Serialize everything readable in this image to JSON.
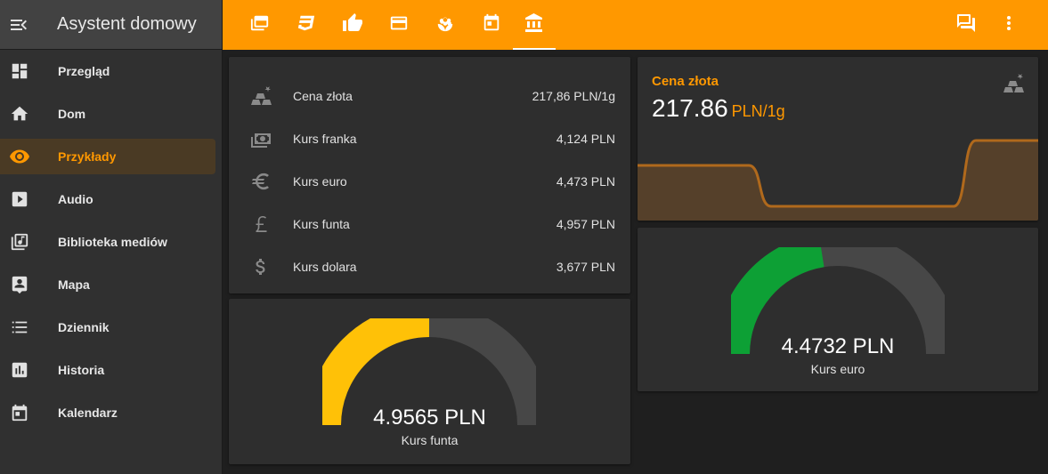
{
  "app": {
    "title": "Asystent domowy"
  },
  "sidebar": {
    "items": [
      {
        "label": "Przegląd",
        "icon": "dashboard-icon"
      },
      {
        "label": "Dom",
        "icon": "home-icon"
      },
      {
        "label": "Przykłady",
        "icon": "eye-icon",
        "active": true
      },
      {
        "label": "Audio",
        "icon": "play-box-icon"
      },
      {
        "label": "Biblioteka mediów",
        "icon": "music-library-icon"
      },
      {
        "label": "Mapa",
        "icon": "account-box-icon"
      },
      {
        "label": "Dziennik",
        "icon": "list-icon"
      },
      {
        "label": "Historia",
        "icon": "chart-box-icon"
      },
      {
        "label": "Kalendarz",
        "icon": "calendar-icon"
      }
    ]
  },
  "topbar": {
    "tabs": [
      "cards-icon",
      "css3-icon",
      "thumb-up-icon",
      "credit-card-icon",
      "flower-icon",
      "calendar-today-icon",
      "bank-icon"
    ],
    "active_tab": 6,
    "right": [
      "conversation-icon",
      "more-vertical-icon"
    ]
  },
  "entities": {
    "rows": [
      {
        "name": "Cena złota",
        "value": "217,86 PLN/1g",
        "icon": "gold-icon"
      },
      {
        "name": "Kurs franka",
        "value": "4,124 PLN",
        "icon": "cash-icon"
      },
      {
        "name": "Kurs euro",
        "value": "4,473 PLN",
        "icon": "euro-icon"
      },
      {
        "name": "Kurs funta",
        "value": "4,957 PLN",
        "icon": "pound-icon"
      },
      {
        "name": "Kurs dolara",
        "value": "3,677 PLN",
        "icon": "dollar-icon"
      }
    ]
  },
  "sensor": {
    "name": "Cena złota",
    "value": "217.86",
    "unit": "PLN/1g",
    "icon": "gold-icon"
  },
  "gauges": {
    "funt": {
      "value_text": "4.9565 PLN",
      "label": "Kurs funta",
      "fraction": 0.5,
      "color": "#ffc107"
    },
    "euro": {
      "value_text": "4.4732 PLN",
      "label": "Kurs euro",
      "fraction": 0.45,
      "color": "#0da035"
    }
  },
  "colors": {
    "accent": "#ff9800",
    "gauge_track": "#474747"
  }
}
